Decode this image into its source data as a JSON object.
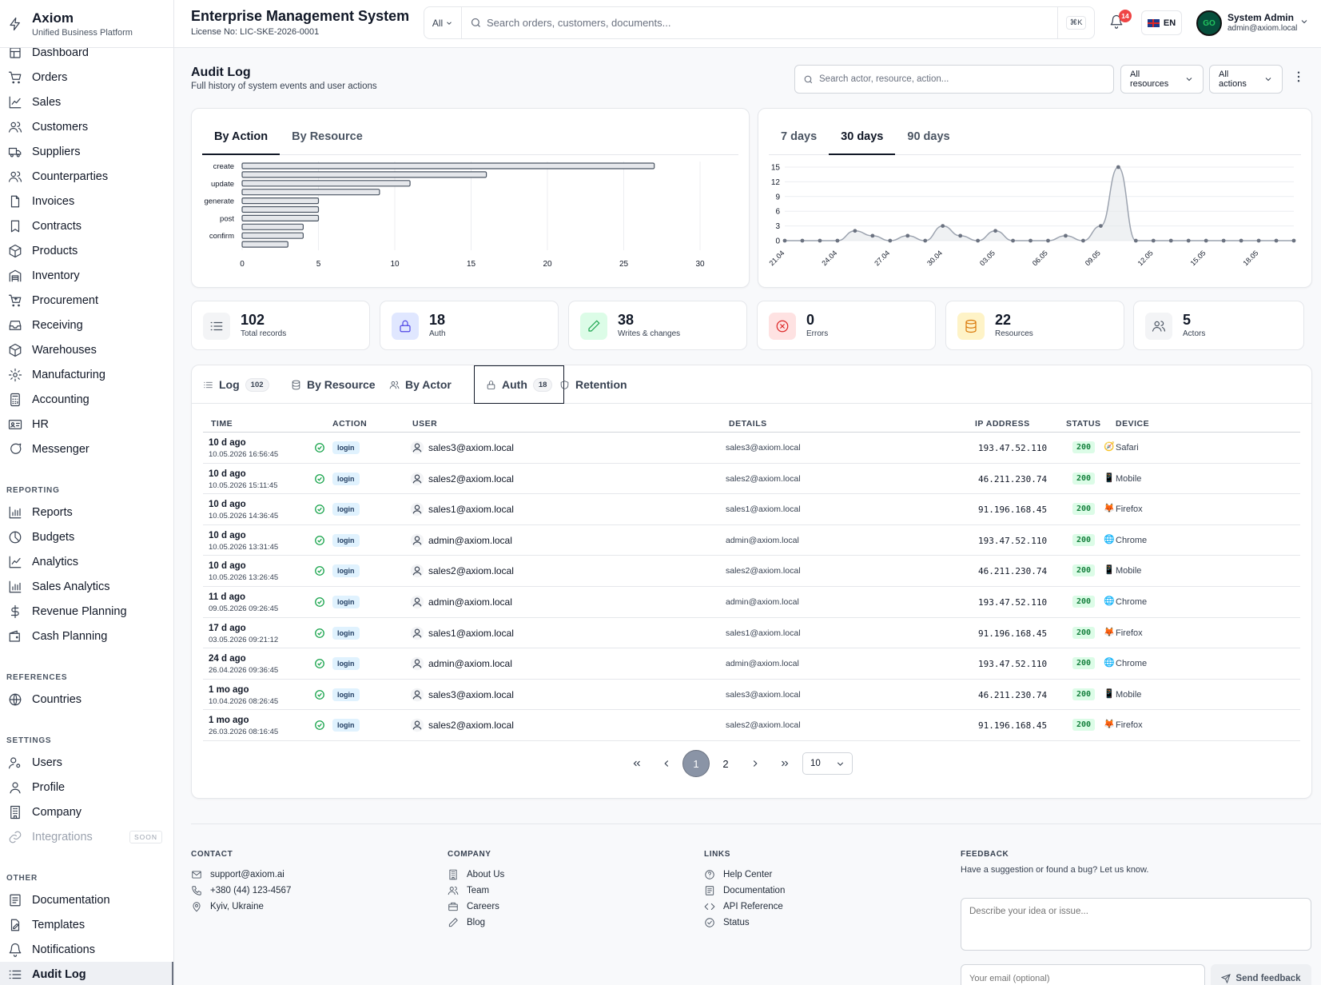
{
  "brand": {
    "name": "Axiom",
    "tagline": "Unified Business Platform"
  },
  "header": {
    "title": "Enterprise Management System",
    "license": "License No: LIC-SKE-2026-0001",
    "search_scope": "All",
    "search_placeholder": "Search orders, customers, documents...",
    "shortcut": "⌘K",
    "notifications": "14",
    "language": "EN",
    "avatar_text": "GO",
    "user_name": "System Admin",
    "user_email": "admin@axiom.local"
  },
  "sidebar": {
    "main": [
      {
        "label": "Dashboard",
        "icon": "dashboard-icon"
      },
      {
        "label": "Orders",
        "icon": "cart-icon"
      },
      {
        "label": "Sales",
        "icon": "chart-line-icon"
      },
      {
        "label": "Customers",
        "icon": "users-icon"
      },
      {
        "label": "Suppliers",
        "icon": "truck-icon"
      },
      {
        "label": "Counterparties",
        "icon": "users-icon"
      },
      {
        "label": "Invoices",
        "icon": "file-icon"
      },
      {
        "label": "Contracts",
        "icon": "bookmark-icon"
      },
      {
        "label": "Products",
        "icon": "box-icon"
      },
      {
        "label": "Inventory",
        "icon": "warehouse-icon"
      },
      {
        "label": "Procurement",
        "icon": "cart-plus-icon"
      },
      {
        "label": "Receiving",
        "icon": "inbox-icon"
      },
      {
        "label": "Warehouses",
        "icon": "box-icon"
      },
      {
        "label": "Manufacturing",
        "icon": "cog-icon"
      },
      {
        "label": "Accounting",
        "icon": "calculator-icon"
      },
      {
        "label": "HR",
        "icon": "id-card-icon"
      },
      {
        "label": "Messenger",
        "icon": "chat-icon"
      }
    ],
    "reporting_title": "REPORTING",
    "reporting": [
      {
        "label": "Reports",
        "icon": "bar-chart-icon"
      },
      {
        "label": "Budgets",
        "icon": "pie-icon"
      },
      {
        "label": "Analytics",
        "icon": "chart-line-icon"
      },
      {
        "label": "Sales Analytics",
        "icon": "bar-chart-icon"
      },
      {
        "label": "Revenue Planning",
        "icon": "dollar-icon"
      },
      {
        "label": "Cash Planning",
        "icon": "wallet-icon"
      }
    ],
    "references_title": "REFERENCES",
    "references": [
      {
        "label": "Countries",
        "icon": "globe-icon"
      }
    ],
    "settings_title": "SETTINGS",
    "settings": [
      {
        "label": "Users",
        "icon": "user-cog-icon"
      },
      {
        "label": "Profile",
        "icon": "user-icon"
      },
      {
        "label": "Company",
        "icon": "building-icon"
      },
      {
        "label": "Integrations",
        "icon": "link-icon",
        "badge": "SOON"
      }
    ],
    "other_title": "OTHER",
    "other": [
      {
        "label": "Documentation",
        "icon": "book-icon"
      },
      {
        "label": "Templates",
        "icon": "template-icon"
      },
      {
        "label": "Notifications",
        "icon": "bell-icon"
      },
      {
        "label": "Audit Log",
        "icon": "list-icon",
        "active": true
      }
    ]
  },
  "page": {
    "title": "Audit Log",
    "subtitle": "Full history of system events and user actions",
    "search_placeholder": "Search actor, resource, action...",
    "resources_filter": "All resources",
    "actions_filter": "All actions"
  },
  "chart_tabs_left": [
    "By Action",
    "By Resource"
  ],
  "chart_tabs_right": [
    "7 days",
    "30 days",
    "90 days"
  ],
  "chart_data": [
    {
      "type": "bar",
      "orientation": "horizontal",
      "categories": [
        "create",
        "",
        "update",
        "",
        "generate",
        "",
        "post",
        "",
        "confirm",
        ""
      ],
      "values": [
        27,
        16,
        11,
        9,
        5,
        5,
        5,
        4,
        4,
        3
      ],
      "xlim": [
        0,
        30
      ],
      "xticks": [
        0,
        5,
        10,
        15,
        20,
        25,
        30
      ],
      "grid": true
    },
    {
      "type": "area",
      "x": [
        "21.04",
        "22.04",
        "23.04",
        "24.04",
        "25.04",
        "26.04",
        "27.04",
        "28.04",
        "29.04",
        "30.04",
        "01.05",
        "02.05",
        "03.05",
        "04.05",
        "05.05",
        "06.05",
        "07.05",
        "08.05",
        "09.05",
        "10.05",
        "11.05",
        "12.05",
        "13.05",
        "14.05",
        "15.05",
        "16.05",
        "17.05",
        "18.05",
        "19.05",
        "20.05"
      ],
      "values": [
        0,
        0,
        0,
        0,
        2,
        1,
        0,
        1,
        0,
        3,
        1,
        0,
        2,
        0,
        0,
        0,
        1,
        0,
        3,
        15,
        0,
        0,
        0,
        0,
        0,
        0,
        0,
        0,
        0,
        0
      ],
      "xtick_labels": [
        "21.04",
        "24.04",
        "27.04",
        "30.04",
        "03.05",
        "06.05",
        "09.05",
        "12.05",
        "15.05",
        "18.05"
      ],
      "ylim": [
        0,
        15
      ],
      "yticks": [
        0,
        3,
        6,
        9,
        12,
        15
      ],
      "grid": true
    }
  ],
  "stats": [
    {
      "value": "102",
      "label": "Total records",
      "icon": "list-icon",
      "color": "#f3f4f6",
      "stroke": "#4b5563"
    },
    {
      "value": "18",
      "label": "Auth",
      "icon": "lock-icon",
      "color": "#e0e7ff",
      "stroke": "#4f46e5"
    },
    {
      "value": "38",
      "label": "Writes & changes",
      "icon": "pencil-icon",
      "color": "#dcfce7",
      "stroke": "#16a34a"
    },
    {
      "value": "0",
      "label": "Errors",
      "icon": "x-circle-icon",
      "color": "#fee2e2",
      "stroke": "#dc2626"
    },
    {
      "value": "22",
      "label": "Resources",
      "icon": "database-icon",
      "color": "#fef3c7",
      "stroke": "#d97706"
    },
    {
      "value": "5",
      "label": "Actors",
      "icon": "users-icon",
      "color": "#f3f4f6",
      "stroke": "#4b5563"
    }
  ],
  "log_tabs": [
    {
      "label": "Log",
      "count": "102",
      "icon": "list-icon"
    },
    {
      "label": "By Resource",
      "icon": "database-icon"
    },
    {
      "label": "By Actor",
      "icon": "users-icon"
    },
    {
      "label": "Auth",
      "count": "18",
      "icon": "lock-icon",
      "active": true
    },
    {
      "label": "Retention",
      "icon": "shield-icon"
    }
  ],
  "table": {
    "headers": [
      "TIME",
      "ACTION",
      "USER",
      "DETAILS",
      "IP ADDRESS",
      "STATUS",
      "DEVICE"
    ],
    "rows": [
      {
        "ago": "10 d ago",
        "ts": "10.05.2026 16:56:45",
        "action": "login",
        "user": "sales3@axiom.local",
        "details": "sales3@axiom.local",
        "ip": "193.47.52.110",
        "status": "200",
        "device": "Safari",
        "device_icon": "🧭"
      },
      {
        "ago": "10 d ago",
        "ts": "10.05.2026 15:11:45",
        "action": "login",
        "user": "sales2@axiom.local",
        "details": "sales2@axiom.local",
        "ip": "46.211.230.74",
        "status": "200",
        "device": "Mobile",
        "device_icon": "📱"
      },
      {
        "ago": "10 d ago",
        "ts": "10.05.2026 14:36:45",
        "action": "login",
        "user": "sales1@axiom.local",
        "details": "sales1@axiom.local",
        "ip": "91.196.168.45",
        "status": "200",
        "device": "Firefox",
        "device_icon": "🦊"
      },
      {
        "ago": "10 d ago",
        "ts": "10.05.2026 13:31:45",
        "action": "login",
        "user": "admin@axiom.local",
        "details": "admin@axiom.local",
        "ip": "193.47.52.110",
        "status": "200",
        "device": "Chrome",
        "device_icon": "🌐"
      },
      {
        "ago": "10 d ago",
        "ts": "10.05.2026 13:26:45",
        "action": "login",
        "user": "sales2@axiom.local",
        "details": "sales2@axiom.local",
        "ip": "46.211.230.74",
        "status": "200",
        "device": "Mobile",
        "device_icon": "📱"
      },
      {
        "ago": "11 d ago",
        "ts": "09.05.2026 09:26:45",
        "action": "login",
        "user": "admin@axiom.local",
        "details": "admin@axiom.local",
        "ip": "193.47.52.110",
        "status": "200",
        "device": "Chrome",
        "device_icon": "🌐"
      },
      {
        "ago": "17 d ago",
        "ts": "03.05.2026 09:21:12",
        "action": "login",
        "user": "sales1@axiom.local",
        "details": "sales1@axiom.local",
        "ip": "91.196.168.45",
        "status": "200",
        "device": "Firefox",
        "device_icon": "🦊"
      },
      {
        "ago": "24 d ago",
        "ts": "26.04.2026 09:36:45",
        "action": "login",
        "user": "admin@axiom.local",
        "details": "admin@axiom.local",
        "ip": "193.47.52.110",
        "status": "200",
        "device": "Chrome",
        "device_icon": "🌐"
      },
      {
        "ago": "1 mo ago",
        "ts": "10.04.2026 08:26:45",
        "action": "login",
        "user": "sales3@axiom.local",
        "details": "sales3@axiom.local",
        "ip": "46.211.230.74",
        "status": "200",
        "device": "Mobile",
        "device_icon": "📱"
      },
      {
        "ago": "1 mo ago",
        "ts": "26.03.2026 08:16:45",
        "action": "login",
        "user": "sales2@axiom.local",
        "details": "sales2@axiom.local",
        "ip": "91.196.168.45",
        "status": "200",
        "device": "Firefox",
        "device_icon": "🦊"
      }
    ]
  },
  "pagination": {
    "pages": [
      "1",
      "2"
    ],
    "current": "1",
    "page_size": "10"
  },
  "footer": {
    "contact_title": "CONTACT",
    "contact": [
      {
        "label": "support@axiom.ai",
        "icon": "mail-icon"
      },
      {
        "label": "+380 (44) 123-4567",
        "icon": "phone-icon"
      },
      {
        "label": "Kyiv, Ukraine",
        "icon": "map-pin-icon"
      }
    ],
    "company_title": "COMPANY",
    "company": [
      {
        "label": "About Us",
        "icon": "building-icon"
      },
      {
        "label": "Team",
        "icon": "users-icon"
      },
      {
        "label": "Careers",
        "icon": "briefcase-icon"
      },
      {
        "label": "Blog",
        "icon": "pencil-icon"
      }
    ],
    "links_title": "LINKS",
    "links": [
      {
        "label": "Help Center",
        "icon": "help-icon"
      },
      {
        "label": "Documentation",
        "icon": "book-icon"
      },
      {
        "label": "API Reference",
        "icon": "code-icon"
      },
      {
        "label": "Status",
        "icon": "check-circle-icon"
      }
    ],
    "feedback_title": "FEEDBACK",
    "feedback_text": "Have a suggestion or found a bug? Let us know.",
    "feedback_placeholder": "Describe your idea or issue...",
    "email_placeholder": "Your email (optional)",
    "send_label": "Send feedback"
  }
}
